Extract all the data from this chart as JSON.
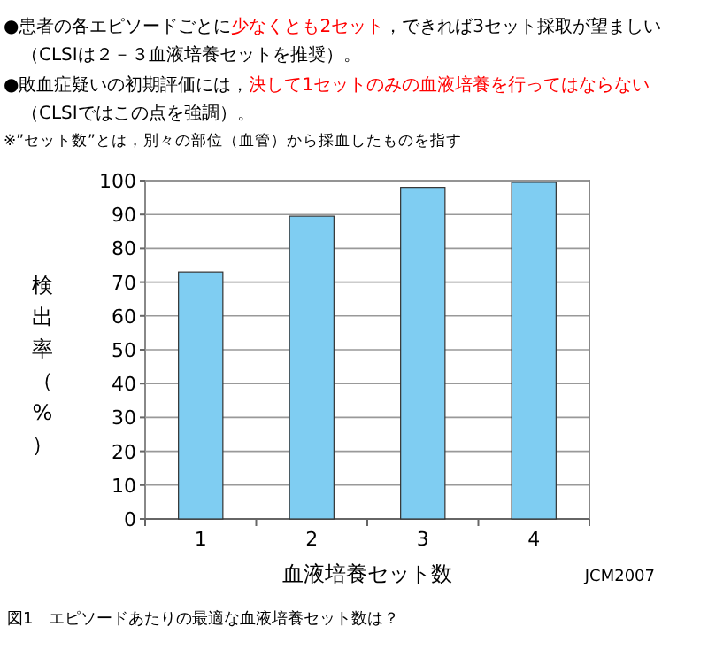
{
  "chart_data": {
    "type": "bar",
    "annotations": [
      "●患者の各エピソードごとに",
      "少なくとも2セット",
      "，できれば3セット採取が望ましい",
      "（CLSIは２－３血液培養セットを推奨）。",
      "●敗血症疑いの初期評価には，",
      "決して1セットのみの血液培養を行ってはならない",
      "（CLSIではこの点を強調）。",
      "※”セット数”とは，別々の部位（血管）から採血したものを指す",
      "JCM2007",
      "図1　エピソードあたりの最適な血液培養セット数は？"
    ],
    "xlabel": "血液培養セット数",
    "ylabel": "検出率（%）",
    "categories": [
      "1",
      "2",
      "3",
      "4"
    ],
    "values": [
      73,
      89.5,
      98,
      99.5
    ],
    "color": "#7fcdf2",
    "ylim": [
      0,
      100
    ],
    "yticks": [
      0,
      10,
      20,
      30,
      40,
      50,
      60,
      70,
      80,
      90,
      100
    ],
    "grid": "y"
  }
}
